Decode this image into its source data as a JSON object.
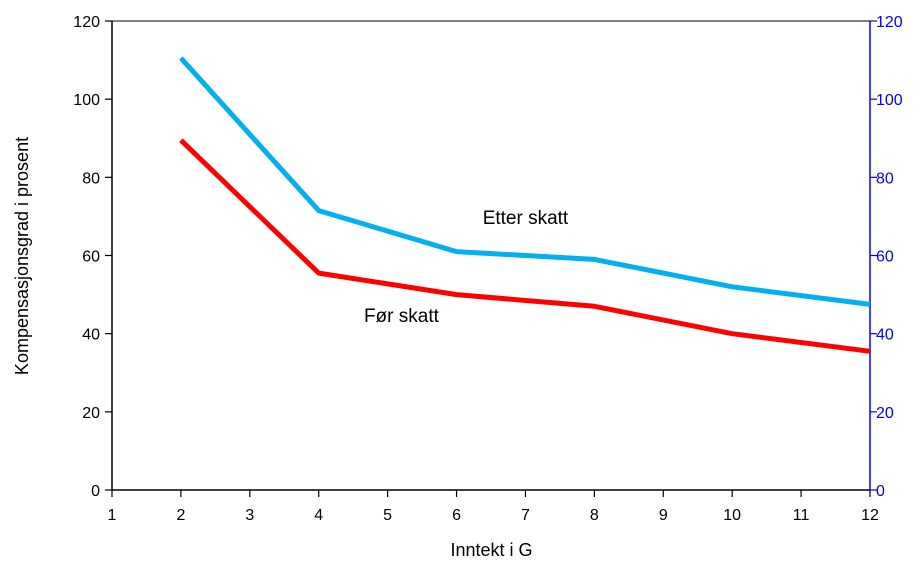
{
  "chart_data": {
    "type": "line",
    "xlabel": "Inntekt i G",
    "ylabel": "Kompensasjonsgrad i prosent",
    "xlim": [
      1,
      12
    ],
    "ylim": [
      0,
      120
    ],
    "x_ticks": [
      1,
      2,
      3,
      4,
      5,
      6,
      7,
      8,
      9,
      10,
      11,
      12
    ],
    "y_ticks": [
      0,
      20,
      40,
      60,
      80,
      100,
      120
    ],
    "right_axis": {
      "ylim": [
        0,
        120
      ],
      "ticks": [
        0,
        20,
        40,
        60,
        80,
        100,
        120
      ],
      "color": "#0000ff"
    },
    "grid": false,
    "legend": "none",
    "series": [
      {
        "name": "Før skatt",
        "color": "#ff0000",
        "x": [
          2,
          4,
          6,
          8,
          10,
          12
        ],
        "values": [
          89.5,
          55.5,
          50,
          47,
          40,
          35.5
        ]
      },
      {
        "name": "Etter skatt",
        "color": "#00b0f0",
        "x": [
          2,
          4,
          6,
          8,
          10,
          12
        ],
        "values": [
          110.5,
          71.5,
          61,
          59,
          52,
          47.5
        ]
      }
    ],
    "annotations": [
      {
        "text": "Etter skatt",
        "x": 7.0,
        "y": 68
      },
      {
        "text": "Før skatt",
        "x": 5.2,
        "y": 43
      }
    ]
  }
}
